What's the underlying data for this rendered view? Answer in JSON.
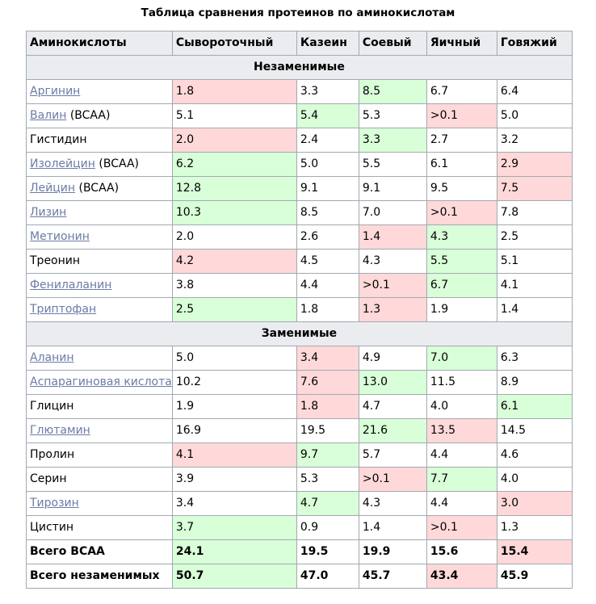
{
  "title": "Таблица сравнения протеинов по аминокислотам",
  "headers": [
    "Аминокислоты",
    "Сывороточный",
    "Казеин",
    "Соевый",
    "Яичный",
    "Говяжий"
  ],
  "sections": [
    {
      "label": "Незаменимые",
      "rows": [
        {
          "name": "Аргинин",
          "link": true,
          "suffix": "",
          "values": [
            "1.8",
            "3.3",
            "8.5",
            "6.7",
            "6.4"
          ],
          "marks": [
            "r",
            "",
            "g",
            "",
            ""
          ]
        },
        {
          "name": "Валин",
          "link": true,
          "suffix": " (BCAA)",
          "values": [
            "5.1",
            "5.4",
            "5.3",
            ">0.1",
            "5.0"
          ],
          "marks": [
            "",
            "g",
            "",
            "r",
            ""
          ]
        },
        {
          "name": "Гистидин",
          "link": false,
          "suffix": "",
          "values": [
            "2.0",
            "2.4",
            "3.3",
            "2.7",
            "3.2"
          ],
          "marks": [
            "r",
            "",
            "g",
            "",
            ""
          ]
        },
        {
          "name": "Изолейцин",
          "link": true,
          "suffix": " (BCAA)",
          "values": [
            "6.2",
            "5.0",
            "5.5",
            "6.1",
            "2.9"
          ],
          "marks": [
            "g",
            "",
            "",
            "",
            "r"
          ]
        },
        {
          "name": "Лейцин",
          "link": true,
          "suffix": " (BCAA)",
          "values": [
            "12.8",
            "9.1",
            "9.1",
            "9.5",
            "7.5"
          ],
          "marks": [
            "g",
            "",
            "",
            "",
            "r"
          ]
        },
        {
          "name": "Лизин",
          "link": true,
          "suffix": "",
          "values": [
            "10.3",
            "8.5",
            "7.0",
            ">0.1",
            "7.8"
          ],
          "marks": [
            "g",
            "",
            "",
            "r",
            ""
          ]
        },
        {
          "name": "Метионин",
          "link": true,
          "suffix": "",
          "values": [
            "2.0",
            "2.6",
            "1.4",
            "4.3",
            "2.5"
          ],
          "marks": [
            "",
            "",
            "r",
            "g",
            ""
          ]
        },
        {
          "name": "Треонин",
          "link": false,
          "suffix": "",
          "values": [
            "4.2",
            "4.5",
            "4.3",
            "5.5",
            "5.1"
          ],
          "marks": [
            "r",
            "",
            "",
            "g",
            ""
          ]
        },
        {
          "name": "Фенилаланин",
          "link": true,
          "suffix": "",
          "values": [
            "3.8",
            "4.4",
            ">0.1",
            "6.7",
            "4.1"
          ],
          "marks": [
            "",
            "",
            "r",
            "g",
            ""
          ]
        },
        {
          "name": "Триптофан",
          "link": true,
          "suffix": "",
          "values": [
            "2.5",
            "1.8",
            "1.3",
            "1.9",
            "1.4"
          ],
          "marks": [
            "g",
            "",
            "r",
            "",
            ""
          ]
        }
      ]
    },
    {
      "label": "Заменимые",
      "rows": [
        {
          "name": "Аланин",
          "link": true,
          "suffix": "",
          "values": [
            "5.0",
            "3.4",
            "4.9",
            "7.0",
            "6.3"
          ],
          "marks": [
            "",
            "r",
            "",
            "g",
            ""
          ]
        },
        {
          "name": "Аспарагиновая кислота",
          "link": true,
          "suffix": "",
          "values": [
            "10.2",
            "7.6",
            "13.0",
            "11.5",
            "8.9"
          ],
          "marks": [
            "",
            "r",
            "g",
            "",
            ""
          ]
        },
        {
          "name": "Глицин",
          "link": false,
          "suffix": "",
          "values": [
            "1.9",
            "1.8",
            "4.7",
            "4.0",
            "6.1"
          ],
          "marks": [
            "",
            "r",
            "",
            "",
            "g"
          ]
        },
        {
          "name": "Глютамин",
          "link": true,
          "suffix": "",
          "values": [
            "16.9",
            "19.5",
            "21.6",
            "13.5",
            "14.5"
          ],
          "marks": [
            "",
            "",
            "g",
            "r",
            ""
          ]
        },
        {
          "name": "Пролин",
          "link": false,
          "suffix": "",
          "values": [
            "4.1",
            "9.7",
            "5.7",
            "4.4",
            "4.6"
          ],
          "marks": [
            "r",
            "g",
            "",
            "",
            ""
          ]
        },
        {
          "name": "Серин",
          "link": false,
          "suffix": "",
          "values": [
            "3.9",
            "5.3",
            ">0.1",
            "7.7",
            "4.0"
          ],
          "marks": [
            "",
            "",
            "r",
            "g",
            ""
          ]
        },
        {
          "name": "Тирозин",
          "link": true,
          "suffix": "",
          "values": [
            "3.4",
            "4.7",
            "4.3",
            "4.4",
            "3.0"
          ],
          "marks": [
            "",
            "g",
            "",
            "",
            "r"
          ]
        },
        {
          "name": "Цистин",
          "link": false,
          "suffix": "",
          "values": [
            "3.7",
            "0.9",
            "1.4",
            ">0.1",
            "1.3"
          ],
          "marks": [
            "g",
            "",
            "",
            "r",
            ""
          ]
        }
      ]
    }
  ],
  "totals": [
    {
      "name": "Всего BCAA",
      "values": [
        "24.1",
        "19.5",
        "19.9",
        "15.6",
        "15.4"
      ],
      "marks": [
        "g",
        "",
        "",
        "",
        "r"
      ]
    },
    {
      "name": "Всего незаменимых",
      "values": [
        "50.7",
        "47.0",
        "45.7",
        "43.4",
        "45.9"
      ],
      "marks": [
        "g",
        "",
        "",
        "r",
        ""
      ]
    }
  ],
  "colors": {
    "low": "#ffd9d9",
    "high": "#d9ffd9",
    "header_bg": "#eaecf0",
    "link": "#6b7ba6",
    "border": "#a2a9b1"
  }
}
